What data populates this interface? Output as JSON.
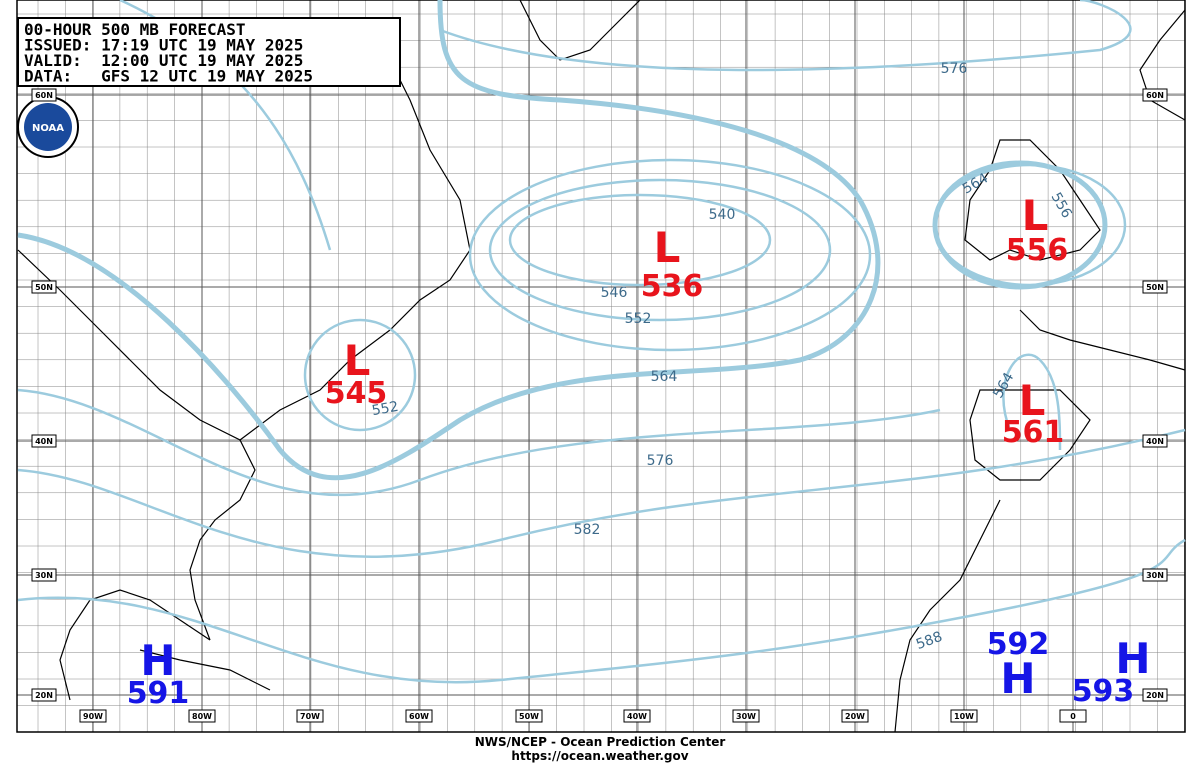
{
  "header": {
    "lines": [
      "00-HOUR 500 MB FORECAST",
      "ISSUED: 17:19 UTC 19 MAY 2025",
      "VALID:  12:00 UTC 19 MAY 2025",
      "DATA:   GFS 12 UTC 19 MAY 2025"
    ],
    "logo": "NOAA"
  },
  "lat_labels": [
    "60N",
    "50N",
    "40N",
    "30N",
    "20N"
  ],
  "lon_labels": [
    "90W",
    "80W",
    "70W",
    "60W",
    "50W",
    "40W",
    "30W",
    "20W",
    "10W",
    "0"
  ],
  "contour_labels": [
    576,
    540,
    546,
    552,
    564,
    576,
    582,
    588,
    564,
    556,
    564,
    552
  ],
  "centers": [
    {
      "letter": "L",
      "value": 536
    },
    {
      "letter": "L",
      "value": 545
    },
    {
      "letter": "L",
      "value": 556
    },
    {
      "letter": "L",
      "value": 561
    },
    {
      "letter": "H",
      "value": 591
    },
    {
      "letter": "H",
      "value": 592
    },
    {
      "letter": "H",
      "value": 593
    }
  ],
  "footer": [
    "NWS/NCEP - Ocean Prediction Center",
    "https://ocean.weather.gov"
  ]
}
